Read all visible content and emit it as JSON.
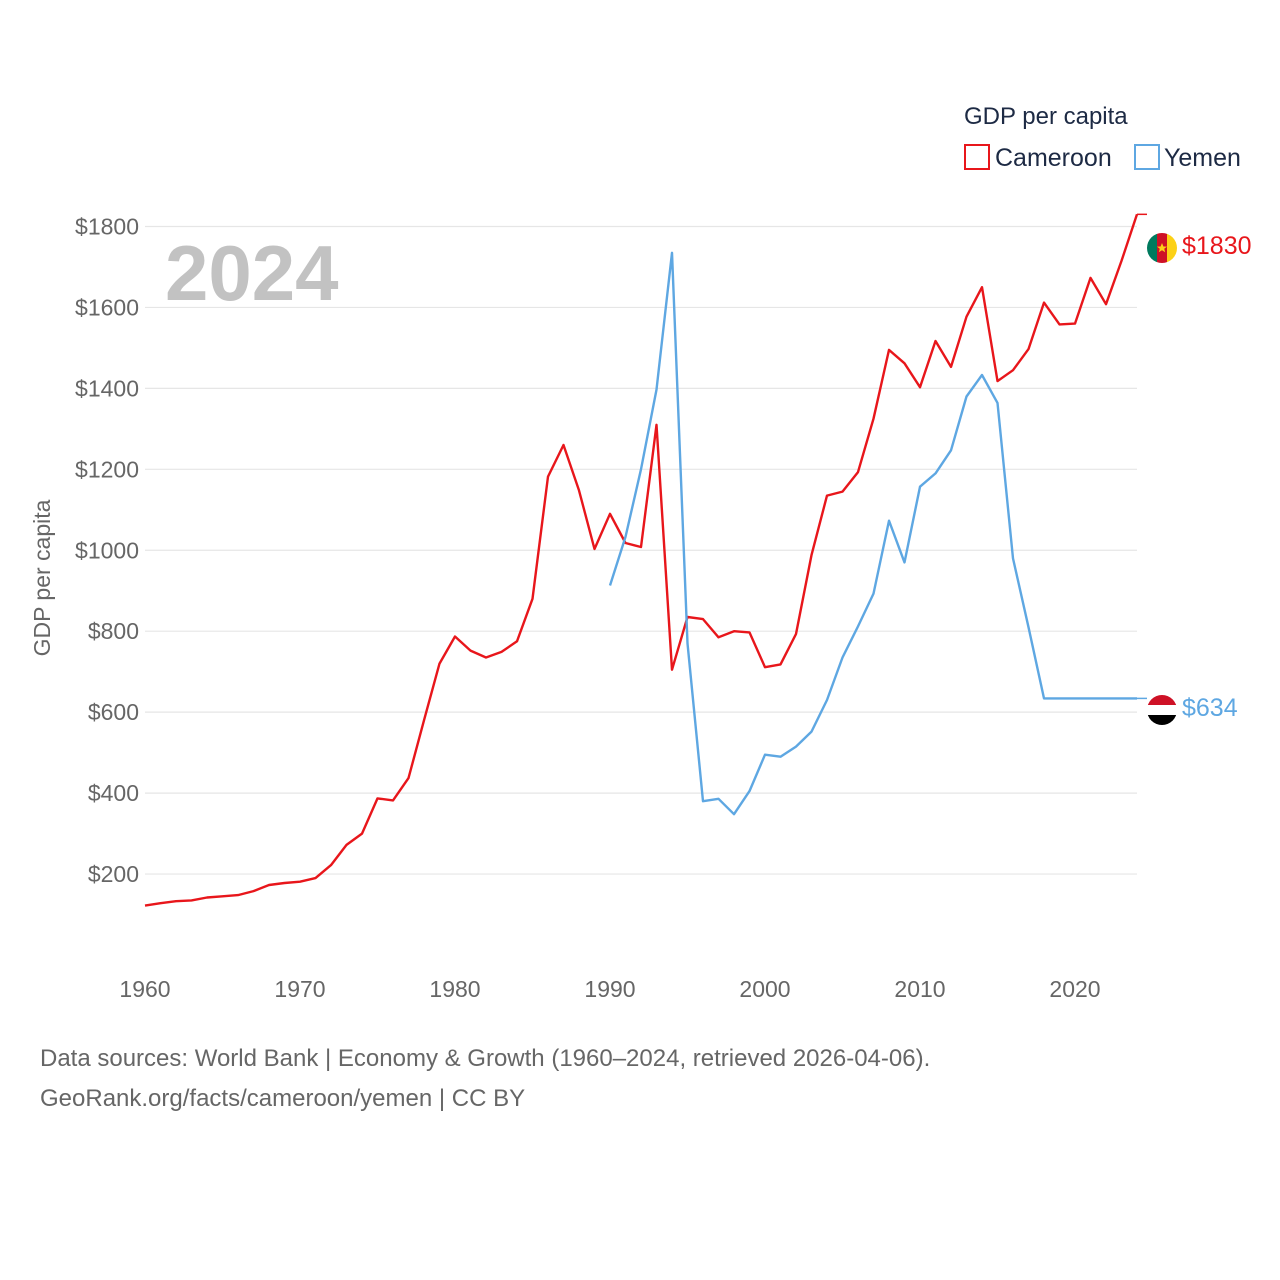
{
  "colors": {
    "cameroon": "#e8161b",
    "yemen": "#5ea7e2",
    "grid": "#e6e6e6",
    "text": "#666666",
    "year": "#c2c2c2"
  },
  "legend": {
    "title": "GDP per capita",
    "items": [
      "Cameroon",
      "Yemen"
    ]
  },
  "year_watermark": "2024",
  "end_labels": {
    "cameroon": "$1830",
    "yemen": "$634"
  },
  "footer": {
    "line1": "Data sources: World Bank | Economy & Growth (1960–2024, retrieved 2026-04-06).",
    "line2": "GeoRank.org/facts/cameroon/yemen | CC BY"
  },
  "chart_data": {
    "type": "line",
    "title": "GDP per capita",
    "xlabel": "",
    "ylabel": "GDP per capita",
    "xlim": [
      1960,
      2024
    ],
    "ylim": [
      0,
      1900
    ],
    "xticks": [
      1960,
      1970,
      1980,
      1990,
      2000,
      2010,
      2020
    ],
    "yticks": [
      200,
      400,
      600,
      800,
      1000,
      1200,
      1400,
      1600,
      1800
    ],
    "ytick_labels": [
      "$200",
      "$400",
      "$600",
      "$800",
      "$1000",
      "$1200",
      "$1400",
      "$1600",
      "$1800"
    ],
    "grid": true,
    "legend_position": "top-right",
    "series": [
      {
        "name": "Cameroon",
        "x": [
          1960,
          1961,
          1962,
          1963,
          1964,
          1965,
          1966,
          1967,
          1968,
          1969,
          1970,
          1971,
          1972,
          1973,
          1974,
          1975,
          1976,
          1977,
          1978,
          1979,
          1980,
          1981,
          1982,
          1983,
          1984,
          1985,
          1986,
          1987,
          1988,
          1989,
          1990,
          1991,
          1992,
          1993,
          1994,
          1995,
          1996,
          1997,
          1998,
          1999,
          2000,
          2001,
          2002,
          2003,
          2004,
          2005,
          2006,
          2007,
          2008,
          2009,
          2010,
          2011,
          2012,
          2013,
          2014,
          2015,
          2016,
          2017,
          2018,
          2019,
          2020,
          2021,
          2022,
          2023,
          2024
        ],
        "values": [
          122,
          128,
          133,
          135,
          142,
          145,
          148,
          158,
          173,
          178,
          181,
          190,
          222,
          272,
          300,
          387,
          382,
          437,
          580,
          720,
          787,
          752,
          735,
          749,
          775,
          880,
          1182,
          1260,
          1148,
          1003,
          1090,
          1018,
          1008,
          1310,
          705,
          835,
          830,
          785,
          800,
          797,
          711,
          718,
          793,
          988,
          1135,
          1145,
          1193,
          1325,
          1495,
          1462,
          1403,
          1517,
          1453,
          1577,
          1650,
          1418,
          1445,
          1497,
          1612,
          1558,
          1560,
          1673,
          1608,
          1715,
          1830
        ]
      },
      {
        "name": "Yemen",
        "x": [
          1990,
          1991,
          1992,
          1993,
          1994,
          1995,
          1996,
          1997,
          1998,
          1999,
          2000,
          2001,
          2002,
          2003,
          2004,
          2005,
          2006,
          2007,
          2008,
          2009,
          2010,
          2011,
          2012,
          2013,
          2014,
          2015,
          2016,
          2017,
          2018,
          2019,
          2020,
          2021,
          2022,
          2023,
          2024
        ],
        "values": [
          913,
          1033,
          1200,
          1397,
          1735,
          770,
          380,
          386,
          348,
          405,
          495,
          490,
          515,
          552,
          630,
          735,
          812,
          893,
          1073,
          970,
          1157,
          1190,
          1247,
          1380,
          1433,
          1364,
          980,
          810,
          634,
          634,
          634,
          634,
          634,
          634,
          634
        ]
      }
    ]
  }
}
